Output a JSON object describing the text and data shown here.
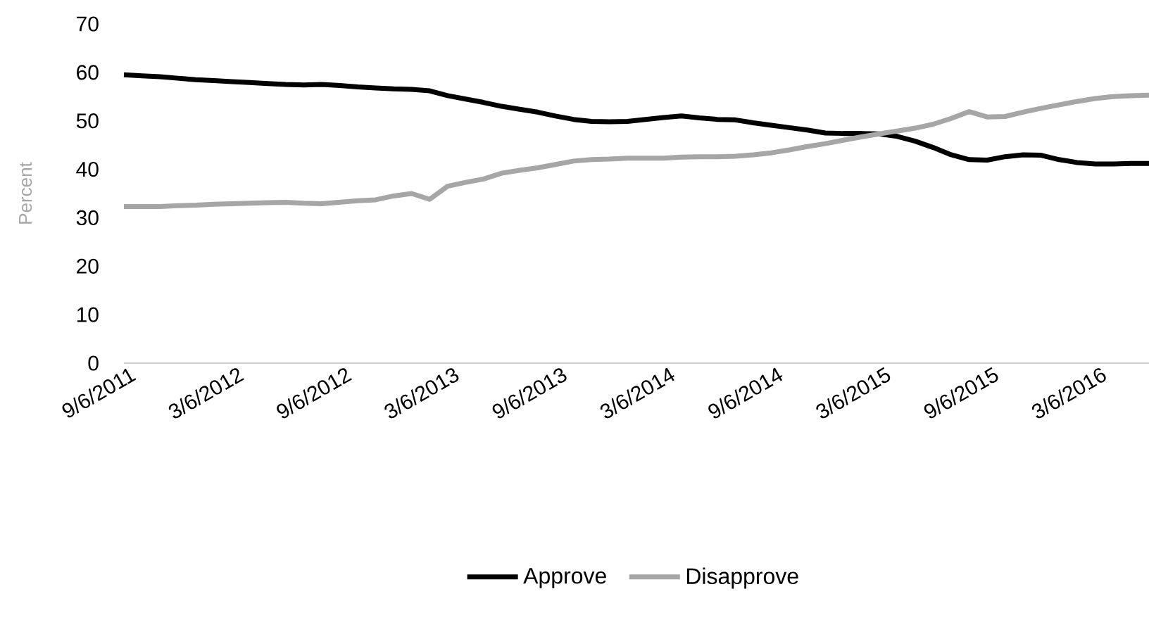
{
  "chart_data": {
    "type": "line",
    "ylabel": "Percent",
    "categories": [
      "9/6/2011",
      null,
      null,
      null,
      null,
      null,
      "3/6/2012",
      null,
      null,
      null,
      null,
      null,
      "9/6/2012",
      null,
      null,
      null,
      null,
      null,
      "3/6/2013",
      null,
      null,
      null,
      null,
      null,
      "9/6/2013",
      null,
      null,
      null,
      null,
      null,
      "3/6/2014",
      null,
      null,
      null,
      null,
      null,
      "9/6/2014",
      null,
      null,
      null,
      null,
      null,
      "3/6/2015",
      null,
      null,
      null,
      null,
      null,
      "9/6/2015",
      null,
      null,
      null,
      null,
      null,
      "3/6/2016",
      null,
      null,
      null
    ],
    "series": [
      {
        "name": "Approve",
        "color": "#000000",
        "values": [
          59.5,
          59.3,
          59.1,
          58.8,
          58.5,
          58.3,
          58.1,
          57.9,
          57.7,
          57.5,
          57.4,
          57.5,
          57.3,
          57.0,
          56.8,
          56.6,
          56.5,
          56.2,
          55.2,
          54.5,
          53.8,
          53.0,
          52.4,
          51.8,
          51.0,
          50.3,
          49.9,
          49.8,
          49.9,
          50.3,
          50.7,
          51.0,
          50.6,
          50.3,
          50.2,
          49.6,
          49.1,
          48.6,
          48.1,
          47.5,
          47.4,
          47.4,
          47.3,
          46.8,
          45.8,
          44.5,
          43.0,
          42.0,
          41.9,
          42.6,
          43.0,
          42.9,
          42.0,
          41.4,
          41.1,
          41.1,
          41.2,
          41.2
        ]
      },
      {
        "name": "Disapprove",
        "color": "#a6a6a6",
        "values": [
          32.3,
          32.3,
          32.3,
          32.5,
          32.6,
          32.8,
          32.9,
          33.0,
          33.1,
          33.2,
          33.0,
          32.9,
          33.2,
          33.5,
          33.7,
          34.5,
          35.0,
          33.8,
          36.5,
          37.3,
          38.0,
          39.2,
          39.8,
          40.3,
          41.0,
          41.7,
          42.0,
          42.1,
          42.3,
          42.3,
          42.3,
          42.5,
          42.6,
          42.6,
          42.7,
          43.0,
          43.4,
          44.0,
          44.7,
          45.3,
          46.0,
          46.7,
          47.3,
          47.9,
          48.5,
          49.3,
          50.5,
          51.9,
          50.8,
          50.9,
          51.8,
          52.6,
          53.3,
          54.0,
          54.6,
          55.0,
          55.2,
          55.3
        ]
      }
    ],
    "ylim": [
      0,
      70
    ],
    "yticks": [
      0,
      10,
      20,
      30,
      40,
      50,
      60,
      70
    ],
    "grid": false,
    "legend": "bottom"
  }
}
